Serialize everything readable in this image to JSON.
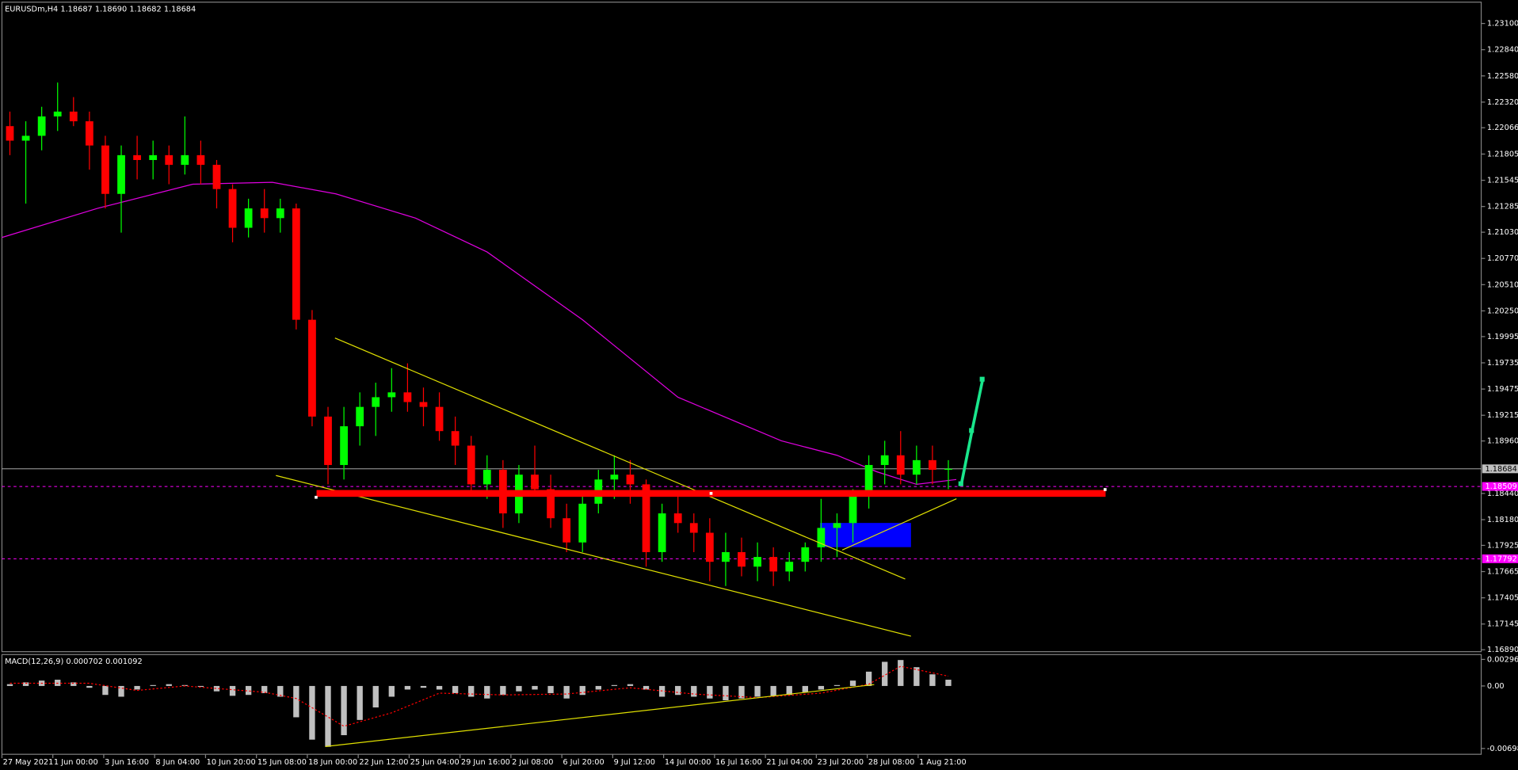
{
  "chart_data": [
    {
      "type": "candlestick",
      "title": "EURUSDm,H4  1.18687 1.18690 1.18682 1.18684",
      "x": [
        0,
        1,
        2,
        3,
        4,
        5,
        6,
        7,
        8,
        9,
        10,
        11,
        12,
        13,
        14,
        15,
        16,
        17,
        18,
        19,
        20,
        21,
        22,
        23,
        24,
        25,
        26,
        27,
        28,
        29,
        30,
        31,
        32,
        33,
        34,
        35,
        36,
        37,
        38,
        39,
        40,
        41,
        42,
        43,
        44,
        45,
        46,
        47,
        48,
        49,
        50,
        51,
        52,
        53,
        54,
        55,
        56,
        57,
        58,
        59
      ],
      "open": [
        1.22082,
        1.21938,
        1.21986,
        1.22178,
        1.22226,
        1.2213,
        1.2189,
        1.2141,
        1.21794,
        1.21746,
        1.21794,
        1.21698,
        1.21794,
        1.21698,
        1.21458,
        1.21074,
        1.21266,
        1.2117,
        1.21266,
        1.20162,
        1.19202,
        1.18722,
        1.19106,
        1.19298,
        1.19394,
        1.19442,
        1.19346,
        1.19298,
        1.19058,
        1.18914,
        1.1853,
        1.18674,
        1.18242,
        1.18626,
        1.18482,
        1.18194,
        1.17954,
        1.18338,
        1.18578,
        1.18626,
        1.1853,
        1.17858,
        1.18242,
        1.18146,
        1.1805,
        1.17762,
        1.17858,
        1.17714,
        1.1781,
        1.17666,
        1.17762,
        1.17906,
        1.18098,
        1.18146,
        1.18434,
        1.18722,
        1.18818,
        1.18626,
        1.1877,
        1.18674
      ],
      "high": [
        1.22226,
        1.2213,
        1.22274,
        1.22514,
        1.2237,
        1.22226,
        1.21986,
        1.2189,
        1.21986,
        1.21938,
        1.2189,
        1.22178,
        1.21938,
        1.21746,
        1.21506,
        1.21362,
        1.21458,
        1.21362,
        1.21314,
        1.20258,
        1.19298,
        1.19298,
        1.19442,
        1.19538,
        1.19682,
        1.1973,
        1.1949,
        1.19442,
        1.19202,
        1.1901,
        1.18818,
        1.1877,
        1.18722,
        1.18914,
        1.18626,
        1.18338,
        1.18434,
        1.18674,
        1.18818,
        1.1877,
        1.18578,
        1.18338,
        1.18434,
        1.18242,
        1.18194,
        1.1805,
        1.18002,
        1.17954,
        1.17906,
        1.17858,
        1.17954,
        1.18386,
        1.18242,
        1.18482,
        1.18818,
        1.18962,
        1.19058,
        1.18914,
        1.18914,
        1.1877
      ],
      "low": [
        1.21794,
        1.21314,
        1.21842,
        1.22034,
        1.22082,
        1.2165,
        1.21266,
        1.21026,
        1.21554,
        1.21554,
        1.21506,
        1.21602,
        1.21506,
        1.21266,
        1.2093,
        1.20978,
        1.21026,
        1.21026,
        1.20066,
        1.19106,
        1.1853,
        1.18578,
        1.18914,
        1.1901,
        1.1925,
        1.1925,
        1.19106,
        1.18962,
        1.18722,
        1.18434,
        1.18386,
        1.18098,
        1.18146,
        1.18434,
        1.18098,
        1.17858,
        1.17858,
        1.18242,
        1.18386,
        1.18338,
        1.17714,
        1.17762,
        1.1805,
        1.17858,
        1.1757,
        1.17522,
        1.17618,
        1.1757,
        1.17522,
        1.1757,
        1.17666,
        1.17762,
        1.1781,
        1.17954,
        1.1829,
        1.1853,
        1.1853,
        1.1853,
        1.1853,
        1.18482
      ],
      "close": [
        1.21938,
        1.21986,
        1.22178,
        1.22226,
        1.2213,
        1.2189,
        1.2141,
        1.21794,
        1.21746,
        1.21794,
        1.21698,
        1.21794,
        1.21698,
        1.21458,
        1.21074,
        1.21266,
        1.2117,
        1.21266,
        1.20162,
        1.19202,
        1.18722,
        1.19106,
        1.19298,
        1.19394,
        1.19442,
        1.19346,
        1.19298,
        1.19058,
        1.18914,
        1.1853,
        1.18674,
        1.18242,
        1.18626,
        1.18482,
        1.18194,
        1.17954,
        1.18338,
        1.18578,
        1.18626,
        1.1853,
        1.17858,
        1.18242,
        1.18146,
        1.1805,
        1.17762,
        1.17858,
        1.17714,
        1.1781,
        1.17666,
        1.17762,
        1.17906,
        1.18098,
        1.18146,
        1.18434,
        1.18722,
        1.18818,
        1.18626,
        1.1877,
        1.18674,
        1.18684
      ],
      "up_color": "#00ff00",
      "down_color": "#ff0000",
      "series": [
        {
          "color": "#e000e0",
          "x": [
            -0.5,
            5.5,
            11.5,
            16.5,
            20.5,
            25.5,
            30,
            36,
            42,
            48.5,
            52,
            54.5,
            57,
            59.5
          ],
          "values": [
            1.20978,
            1.21266,
            1.21506,
            1.21525,
            1.2141,
            1.2117,
            1.20834,
            1.20162,
            1.19394,
            1.18962,
            1.18818,
            1.18655,
            1.1853,
            1.18578
          ]
        }
      ],
      "hlines": [
        {
          "value": 1.18684,
          "color": "#c0c0c0",
          "dashed": false
        },
        {
          "value": 1.18509,
          "color": "#ff00ff",
          "dashed": true
        },
        {
          "value": 1.17792,
          "color": "#ff00ff",
          "dashed": true
        }
      ],
      "xlim": [
        -0.5,
        92.5
      ],
      "xticks": [
        {
          "value": -0.5,
          "label": "27 May 2021"
        },
        {
          "value": 2.7,
          "label": "1 Jun 00:00"
        },
        {
          "value": 5.9,
          "label": "3 Jun 16:00"
        },
        {
          "value": 9.1,
          "label": "8 Jun 04:00"
        },
        {
          "value": 12.3,
          "label": "10 Jun 20:00"
        },
        {
          "value": 15.5,
          "label": "15 Jun 08:00"
        },
        {
          "value": 18.7,
          "label": "18 Jun 00:00"
        },
        {
          "value": 21.9,
          "label": "22 Jun 12:00"
        },
        {
          "value": 25.1,
          "label": "25 Jun 04:00"
        },
        {
          "value": 28.3,
          "label": "29 Jun 16:00"
        },
        {
          "value": 31.5,
          "label": "2 Jul 08:00"
        },
        {
          "value": 34.7,
          "label": "6 Jul 20:00"
        },
        {
          "value": 37.9,
          "label": "9 Jul 12:00"
        },
        {
          "value": 41.1,
          "label": "14 Jul 00:00"
        },
        {
          "value": 44.3,
          "label": "16 Jul 16:00"
        },
        {
          "value": 47.5,
          "label": "21 Jul 04:00"
        },
        {
          "value": 50.7,
          "label": "23 Jul 20:00"
        },
        {
          "value": 53.9,
          "label": "28 Jul 08:00"
        },
        {
          "value": 57.1,
          "label": "1 Aug 21:00"
        }
      ],
      "ylim": [
        1.1689,
        1.231
      ],
      "yticks": [
        {
          "value": 1.231,
          "label": "1.23100"
        },
        {
          "value": 1.2284,
          "label": "1.22840"
        },
        {
          "value": 1.2258,
          "label": "1.22580"
        },
        {
          "value": 1.2232,
          "label": "1.22320"
        },
        {
          "value": 1.22066,
          "label": "1.22066"
        },
        {
          "value": 1.21805,
          "label": "1.21805"
        },
        {
          "value": 1.21545,
          "label": "1.21545"
        },
        {
          "value": 1.21285,
          "label": "1.21285"
        },
        {
          "value": 1.2103,
          "label": "1.21030"
        },
        {
          "value": 1.2077,
          "label": "1.20770"
        },
        {
          "value": 1.2051,
          "label": "1.20510"
        },
        {
          "value": 1.2025,
          "label": "1.20250"
        },
        {
          "value": 1.19995,
          "label": "1.19995"
        },
        {
          "value": 1.19735,
          "label": "1.19735"
        },
        {
          "value": 1.19475,
          "label": "1.19475"
        },
        {
          "value": 1.19215,
          "label": "1.19215"
        },
        {
          "value": 1.1896,
          "label": "1.18960"
        },
        {
          "value": 1.1844,
          "label": "1.18440"
        },
        {
          "value": 1.1818,
          "label": "1.18180"
        },
        {
          "value": 1.17925,
          "label": "1.17925"
        },
        {
          "value": 1.17665,
          "label": "1.17665"
        },
        {
          "value": 1.17405,
          "label": "1.17405"
        },
        {
          "value": 1.17145,
          "label": "1.17145"
        },
        {
          "value": 1.1689,
          "label": "1.16890"
        }
      ]
    },
    {
      "type": "macd",
      "title": "MACD(12,26,9) 0.000702 0.001092",
      "x": [
        0,
        1,
        2,
        3,
        4,
        5,
        6,
        7,
        8,
        9,
        10,
        11,
        12,
        13,
        14,
        15,
        16,
        17,
        18,
        19,
        20,
        21,
        22,
        23,
        24,
        25,
        26,
        27,
        28,
        29,
        30,
        31,
        32,
        33,
        34,
        35,
        36,
        37,
        38,
        39,
        40,
        41,
        42,
        43,
        44,
        45,
        46,
        47,
        48,
        49,
        50,
        51,
        52,
        53,
        54,
        55,
        56,
        57,
        58,
        59
      ],
      "values": [
        0.0002,
        0.0004,
        0.0006,
        0.0007,
        0.0004,
        -0.0002,
        -0.001,
        -0.0012,
        -0.0004,
        0.0001,
        0.0002,
        0.0001,
        -0.0001,
        -0.0006,
        -0.0011,
        -0.001,
        -0.0008,
        -0.0012,
        -0.0035,
        -0.006,
        -0.0068,
        -0.0055,
        -0.0038,
        -0.0024,
        -0.0012,
        -0.0004,
        -0.0002,
        -0.0004,
        -0.0008,
        -0.0012,
        -0.0014,
        -0.001,
        -0.0006,
        -0.0004,
        -0.0008,
        -0.0014,
        -0.001,
        -0.0004,
        0.0001,
        0.0002,
        -0.0004,
        -0.0012,
        -0.001,
        -0.0012,
        -0.0014,
        -0.0016,
        -0.0014,
        -0.0012,
        -0.0011,
        -0.001,
        -0.0007,
        -0.0004,
        0.0001,
        0.0006,
        0.0016,
        0.0027,
        0.0029,
        0.0021,
        0.0013,
        0.0007
      ],
      "color": "#c0c0c0",
      "signal": {
        "color": "#ff0000",
        "x": [
          0,
          5,
          8,
          11,
          16,
          18,
          21,
          24,
          27,
          31,
          35,
          39,
          43,
          47,
          51,
          54,
          56,
          59
        ],
        "values": [
          0.0003,
          0.0003,
          -0.0005,
          0,
          -0.0007,
          -0.0014,
          -0.0045,
          -0.003,
          -0.0008,
          -0.001,
          -0.0009,
          -0.0002,
          -0.0009,
          -0.0013,
          -0.0008,
          0.0002,
          0.0022,
          0.0011
        ]
      },
      "xlim": [
        -0.5,
        92.5
      ],
      "ylim": [
        -0.006988,
        0.002967
      ],
      "yticks": [
        {
          "value": 0.002967,
          "label": "0.002967"
        },
        {
          "value": 0,
          "label": "0.00"
        },
        {
          "value": -0.006988,
          "label": "-0.006988"
        }
      ]
    }
  ]
}
